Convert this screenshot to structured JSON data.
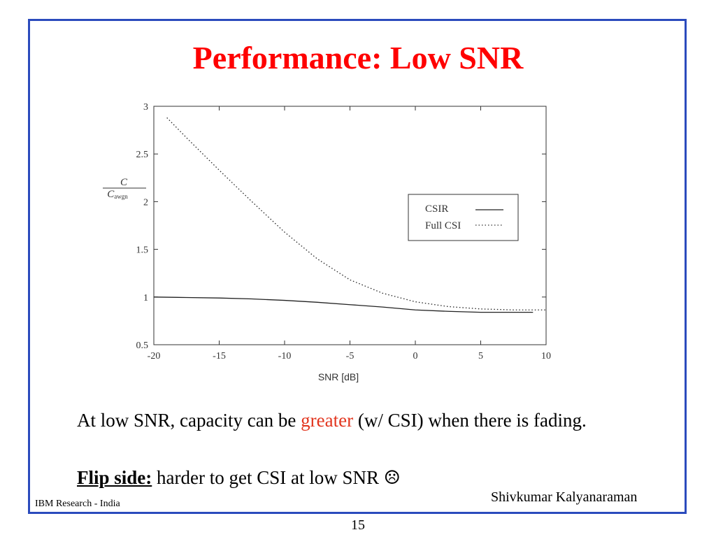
{
  "slide": {
    "title": "Performance: Low SNR",
    "frame_color": "#2b4bbd",
    "title_color": "#ff0000",
    "accent_color": "#e2351e"
  },
  "body": {
    "line1_prefix": "At low SNR, capacity can be ",
    "line1_highlight": "greater",
    "line1_suffix": " (w/ CSI) when there is fading.",
    "line2_label": "Flip side:",
    "line2_text": " harder to get CSI at low SNR ",
    "line2_icon": "☹"
  },
  "footer": {
    "left": "IBM Research - India",
    "right": "Shivkumar Kalyanaraman",
    "page": "15"
  },
  "chart_data": {
    "type": "line",
    "xlabel": "SNR [dB]",
    "ylabel_num": "C",
    "ylabel_den": "C",
    "ylabel_den_sub": "awgn",
    "xlim": [
      -20,
      10
    ],
    "ylim": [
      0.5,
      3
    ],
    "xticks": [
      -20,
      -15,
      -10,
      -5,
      0,
      5,
      10
    ],
    "yticks": [
      0.5,
      1,
      1.5,
      2,
      2.5,
      3
    ],
    "ytick_labels": [
      "0.5",
      "1",
      "1.5",
      "2",
      "2.5",
      "3"
    ],
    "legend_position": "center-right",
    "grid": false,
    "series": [
      {
        "name": "CSIR",
        "style": "solid",
        "x": [
          -20,
          -17.5,
          -15,
          -12.5,
          -10,
          -7.5,
          -5,
          -2.5,
          0,
          2.5,
          5,
          7.5,
          9
        ],
        "y": [
          1.0,
          0.995,
          0.99,
          0.98,
          0.965,
          0.945,
          0.92,
          0.895,
          0.865,
          0.85,
          0.84,
          0.84,
          0.84
        ]
      },
      {
        "name": "Full CSI",
        "style": "dotted",
        "x": [
          -19,
          -17.5,
          -15,
          -12.5,
          -10,
          -7.5,
          -5,
          -2.5,
          0,
          2.5,
          5,
          7.5,
          10
        ],
        "y": [
          2.88,
          2.67,
          2.33,
          2.0,
          1.68,
          1.4,
          1.18,
          1.04,
          0.95,
          0.9,
          0.875,
          0.865,
          0.865
        ]
      }
    ]
  }
}
